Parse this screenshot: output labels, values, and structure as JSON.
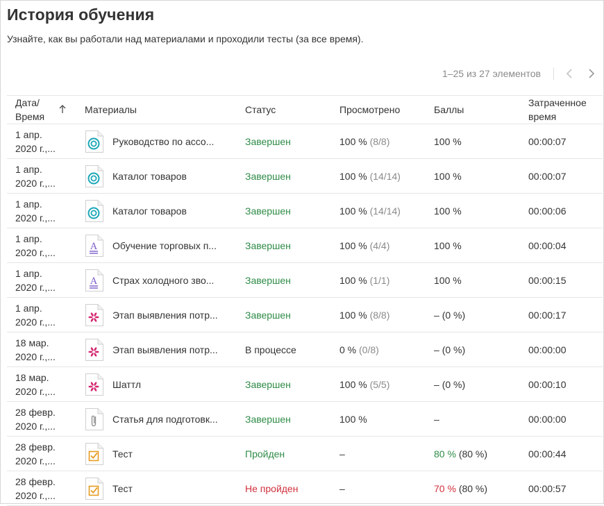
{
  "page": {
    "title": "История обучения",
    "subtitle": "Узнайте, как вы работали над материалами и проходили тесты (за все время)."
  },
  "pager": {
    "range_text": "1–25 из 27 элементов",
    "prev_icon": "chevron-left-icon",
    "next_icon": "chevron-right-icon"
  },
  "columns": {
    "date_line1": "Дата/",
    "date_line2": "Время",
    "materials": "Материалы",
    "status": "Статус",
    "viewed": "Просмотрено",
    "score": "Баллы",
    "time_line1": "Затраченное",
    "time_line2": "время"
  },
  "colors": {
    "success": "#2e8b47",
    "fail": "#d0303c",
    "muted": "#8a8a8a",
    "course_icon": "#1aa6b7",
    "doc_icon": "#7a5bc9",
    "media_icon": "#d4266f",
    "test_icon": "#e59b20"
  },
  "rows": [
    {
      "date1": "1 апр.",
      "date2": "2020 г.,...",
      "icon": "course-icon",
      "name": "Руководство по ассо...",
      "status": "Завершен",
      "status_type": "done",
      "viewed": "100 %",
      "viewed_detail": "(8/8)",
      "score": "100 %",
      "score_detail": "",
      "score_type": "plain",
      "time": "00:00:07"
    },
    {
      "date1": "1 апр.",
      "date2": "2020 г.,...",
      "icon": "course-icon",
      "name": "Каталог товаров",
      "status": "Завершен",
      "status_type": "done",
      "viewed": "100 %",
      "viewed_detail": "(14/14)",
      "score": "100 %",
      "score_detail": "",
      "score_type": "plain",
      "time": "00:00:07"
    },
    {
      "date1": "1 апр.",
      "date2": "2020 г.,...",
      "icon": "course-icon",
      "name": "Каталог товаров",
      "status": "Завершен",
      "status_type": "done",
      "viewed": "100 %",
      "viewed_detail": "(14/14)",
      "score": "100 %",
      "score_detail": "",
      "score_type": "plain",
      "time": "00:00:06"
    },
    {
      "date1": "1 апр.",
      "date2": "2020 г.,...",
      "icon": "document-icon",
      "name": "Обучение торговых п...",
      "status": "Завершен",
      "status_type": "done",
      "viewed": "100 %",
      "viewed_detail": "(4/4)",
      "score": "100 %",
      "score_detail": "",
      "score_type": "plain",
      "time": "00:00:04"
    },
    {
      "date1": "1 апр.",
      "date2": "2020 г.,...",
      "icon": "document-icon",
      "name": "Страх холодного зво...",
      "status": "Завершен",
      "status_type": "done",
      "viewed": "100 %",
      "viewed_detail": "(1/1)",
      "score": "100 %",
      "score_detail": "",
      "score_type": "plain",
      "time": "00:00:15"
    },
    {
      "date1": "1 апр.",
      "date2": "2020 г.,...",
      "icon": "media-icon",
      "name": "Этап выявления потр...",
      "status": "Завершен",
      "status_type": "done",
      "viewed": "100 %",
      "viewed_detail": "(8/8)",
      "score": "–",
      "score_detail": "(0 %)",
      "score_type": "plain",
      "time": "00:00:17"
    },
    {
      "date1": "18 мар.",
      "date2": "2020 г.,...",
      "icon": "media-icon",
      "name": "Этап выявления потр...",
      "status": "В процессе",
      "status_type": "inprog",
      "viewed": "0 %",
      "viewed_detail": "(0/8)",
      "score": "–",
      "score_detail": "(0 %)",
      "score_type": "plain",
      "time": "00:00:00"
    },
    {
      "date1": "18 мар.",
      "date2": "2020 г.,...",
      "icon": "media-icon",
      "name": "Шаттл",
      "status": "Завершен",
      "status_type": "done",
      "viewed": "100 %",
      "viewed_detail": "(5/5)",
      "score": "–",
      "score_detail": "(0 %)",
      "score_type": "plain",
      "time": "00:00:10"
    },
    {
      "date1": "28 февр.",
      "date2": "2020 г.,...",
      "icon": "attachment-icon",
      "name": "Статья для подготовк...",
      "status": "Завершен",
      "status_type": "done",
      "viewed": "100 %",
      "viewed_detail": "",
      "score": "–",
      "score_detail": "",
      "score_type": "plain",
      "time": "00:00:00"
    },
    {
      "date1": "28 февр.",
      "date2": "2020 г.,...",
      "icon": "test-icon",
      "name": "Тест",
      "status": "Пройден",
      "status_type": "pass",
      "viewed": "–",
      "viewed_detail": "",
      "score": "80 %",
      "score_detail": "(80 %)",
      "score_type": "pass",
      "time": "00:00:44"
    },
    {
      "date1": "28 февр.",
      "date2": "2020 г.,...",
      "icon": "test-icon",
      "name": "Тест",
      "status": "Не пройден",
      "status_type": "fail",
      "viewed": "–",
      "viewed_detail": "",
      "score": "70 %",
      "score_detail": "(80 %)",
      "score_type": "fail",
      "time": "00:00:57"
    }
  ]
}
